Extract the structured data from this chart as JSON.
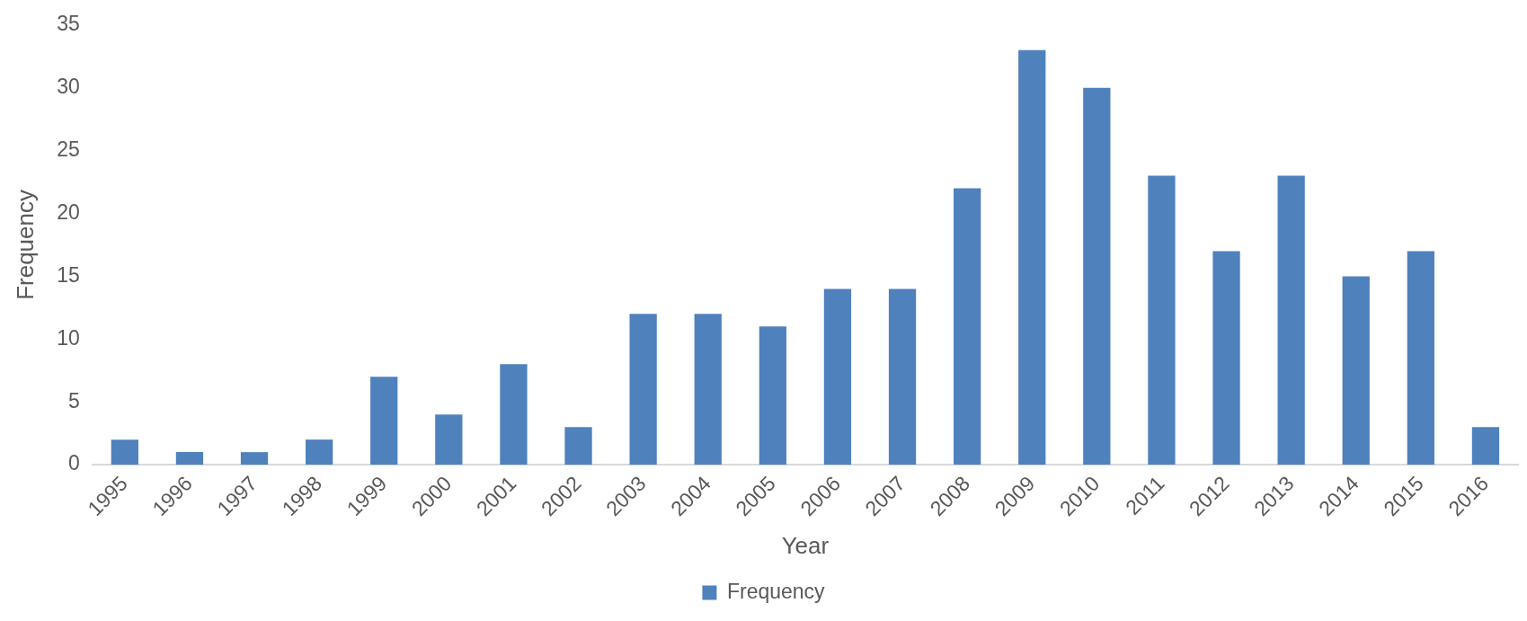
{
  "chart_data": {
    "type": "bar",
    "xlabel": "Year",
    "ylabel": "Frequency",
    "categories": [
      "1995",
      "1996",
      "1997",
      "1998",
      "1999",
      "2000",
      "2001",
      "2002",
      "2003",
      "2004",
      "2005",
      "2006",
      "2007",
      "2008",
      "2009",
      "2010",
      "2011",
      "2012",
      "2013",
      "2014",
      "2015",
      "2016"
    ],
    "series": [
      {
        "name": "Frequency",
        "color": "#4f81bd",
        "values": [
          2,
          1,
          1,
          2,
          7,
          4,
          8,
          3,
          12,
          12,
          11,
          14,
          14,
          22,
          33,
          30,
          23,
          17,
          23,
          15,
          17,
          3
        ]
      }
    ],
    "ylim": [
      0,
      35
    ],
    "yticks": [
      0,
      5,
      10,
      15,
      20,
      25,
      30,
      35
    ],
    "grid": false,
    "legend": "bottom"
  }
}
